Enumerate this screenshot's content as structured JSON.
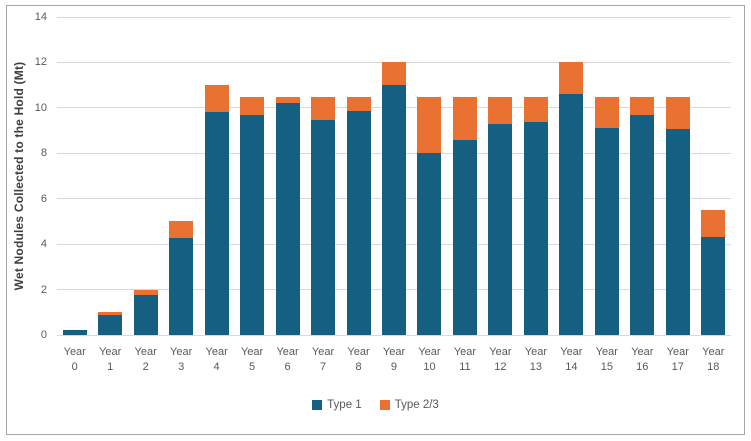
{
  "window": {
    "background": "#ffffff",
    "border_color": "#a7a7a7"
  },
  "colors": {
    "type1": "#156082",
    "type2_3": "#E97132",
    "gridline": "#d9d9d9",
    "tick_text": "#595959",
    "axis_title_text": "#3f3f3f"
  },
  "chart_data": {
    "type": "bar",
    "stacked": true,
    "title": "",
    "xlabel": "",
    "ylabel": "Wet Nodules Collected to the Hold (Mt)",
    "ylim": [
      0,
      14
    ],
    "yticks": [
      0,
      2,
      4,
      6,
      8,
      10,
      12,
      14
    ],
    "grid": true,
    "legend_position": "bottom",
    "categories": [
      "Year 0",
      "Year 1",
      "Year 2",
      "Year 3",
      "Year 4",
      "Year 5",
      "Year 6",
      "Year 7",
      "Year 8",
      "Year 9",
      "Year 10",
      "Year 11",
      "Year 12",
      "Year 13",
      "Year 14",
      "Year 15",
      "Year 16",
      "Year 17",
      "Year 18"
    ],
    "category_label_two_lines": true,
    "series": [
      {
        "name": "Type 1",
        "color": "#156082",
        "values": [
          0.2,
          0.9,
          1.75,
          4.25,
          9.8,
          9.7,
          10.2,
          9.45,
          9.85,
          11.0,
          8.0,
          8.6,
          9.3,
          9.4,
          10.6,
          9.1,
          9.7,
          9.05,
          4.3
        ]
      },
      {
        "name": "Type 2/3",
        "color": "#E97132",
        "values": [
          0.0,
          0.1,
          0.25,
          0.75,
          1.2,
          0.8,
          0.3,
          1.05,
          0.65,
          1.0,
          2.5,
          1.9,
          1.2,
          1.1,
          1.4,
          1.4,
          0.8,
          1.45,
          1.2
        ]
      }
    ],
    "totals": [
      0.2,
      1.0,
      2.0,
      5.0,
      11.0,
      10.5,
      10.5,
      10.5,
      10.5,
      12.0,
      10.5,
      10.5,
      10.5,
      10.5,
      12.0,
      10.5,
      10.5,
      10.5,
      5.5
    ]
  }
}
